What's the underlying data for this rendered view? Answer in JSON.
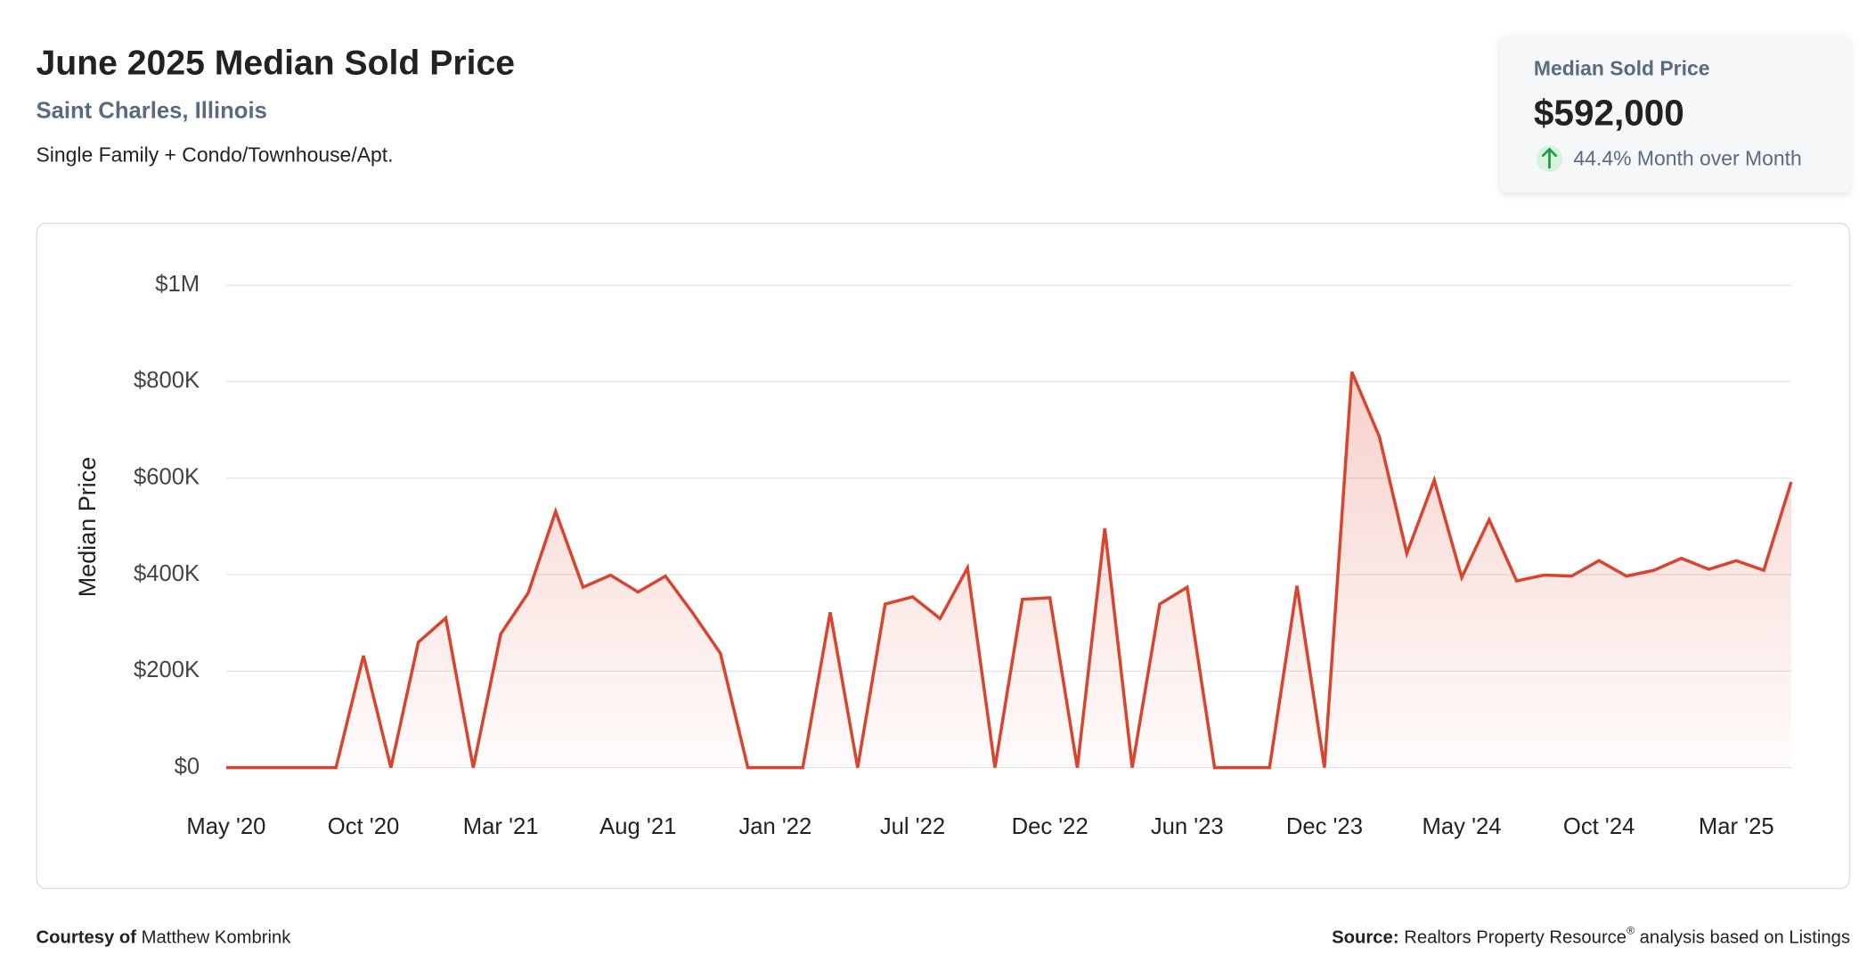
{
  "header": {
    "title": "June 2025 Median Sold Price",
    "subtitle": "Saint Charles, Illinois",
    "description": "Single Family + Condo/Townhouse/Apt."
  },
  "card": {
    "label": "Median Sold Price",
    "value": "$592,000",
    "change": "44.4% Month over Month"
  },
  "footer": {
    "courtesy_label": "Courtesy of",
    "courtesy_name": "Matthew Kombrink",
    "source_label": "Source:",
    "source_text": "Realtors Property Resource",
    "source_mark": "®",
    "source_tail": "analysis based on Listings"
  },
  "chart_data": {
    "type": "line",
    "y_label": "Median Price",
    "color": "#d9442f",
    "grid": true,
    "categories": [
      "May '20",
      null,
      null,
      null,
      null,
      "Oct '20",
      null,
      null,
      null,
      null,
      "Mar '21",
      null,
      null,
      null,
      null,
      "Aug '21",
      null,
      null,
      null,
      null,
      "Jan '22",
      null,
      null,
      null,
      null,
      "Jul '22",
      null,
      null,
      null,
      null,
      "Dec '22",
      null,
      null,
      null,
      null,
      "Jun '23",
      null,
      null,
      null,
      null,
      "Dec '23",
      null,
      null,
      null,
      null,
      "May '24",
      null,
      null,
      null,
      null,
      "Oct '24",
      null,
      null,
      null,
      null,
      "Mar '25",
      null,
      null
    ],
    "values": [
      0,
      0,
      0,
      0,
      0,
      232000,
      0,
      260000,
      310000,
      0,
      277000,
      362000,
      531000,
      374000,
      399000,
      364000,
      397000,
      320000,
      237000,
      0,
      0,
      0,
      322000,
      0,
      339000,
      354000,
      309000,
      414000,
      0,
      349000,
      352000,
      0,
      496000,
      0,
      339000,
      374000,
      0,
      0,
      0,
      377000,
      0,
      820000,
      686000,
      444000,
      596000,
      394000,
      514000,
      387000,
      399000,
      397000,
      429000,
      397000,
      409000,
      434000,
      411000,
      429000,
      409000,
      592000
    ],
    "ylim": [
      0,
      1000000
    ],
    "yticks": [
      {
        "value": 0,
        "label": "$0"
      },
      {
        "value": 200000,
        "label": "$200K"
      },
      {
        "value": 400000,
        "label": "$400K"
      },
      {
        "value": 600000,
        "label": "$600K"
      },
      {
        "value": 800000,
        "label": "$800K"
      },
      {
        "value": 1000000,
        "label": "$1M"
      }
    ]
  }
}
